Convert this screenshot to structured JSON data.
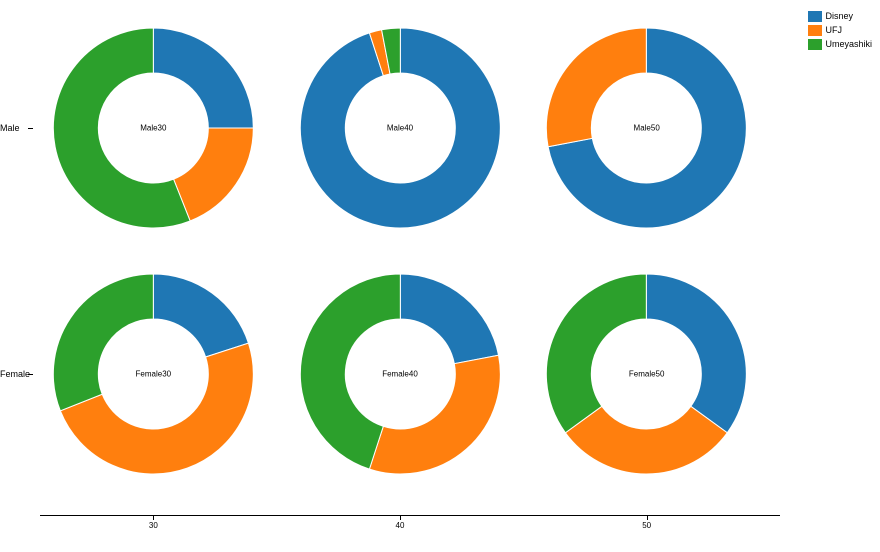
{
  "chart": {
    "type": "donut-grid",
    "background_color": "#ffffff",
    "categories": [
      "Disney",
      "UFJ",
      "Umeyashiki"
    ],
    "colors": {
      "Disney": "#1f77b4",
      "UFJ": "#ff7f0e",
      "Umeyashiki": "#2ca02c"
    },
    "rows": [
      "Male",
      "Female"
    ],
    "cols": [
      "30",
      "40",
      "50"
    ],
    "x_axis_label_fontsize": 8,
    "row_label_fontsize": 9,
    "center_label_fontsize": 8,
    "legend_fontsize": 9,
    "donut": {
      "outer_radius": 100,
      "inner_radius": 55,
      "stroke": "#ffffff",
      "stroke_width": 1
    },
    "cells": [
      {
        "row": "Male",
        "col": "30",
        "center_label": "Male30",
        "slices": [
          {
            "category": "Disney",
            "value": 25
          },
          {
            "category": "UFJ",
            "value": 19
          },
          {
            "category": "Umeyashiki",
            "value": 56
          }
        ]
      },
      {
        "row": "Male",
        "col": "40",
        "center_label": "Male40",
        "slices": [
          {
            "category": "Disney",
            "value": 95
          },
          {
            "category": "UFJ",
            "value": 2
          },
          {
            "category": "Umeyashiki",
            "value": 3
          }
        ]
      },
      {
        "row": "Male",
        "col": "50",
        "center_label": "Male50",
        "slices": [
          {
            "category": "Disney",
            "value": 72
          },
          {
            "category": "UFJ",
            "value": 28
          },
          {
            "category": "Umeyashiki",
            "value": 0
          }
        ]
      },
      {
        "row": "Female",
        "col": "30",
        "center_label": "Female30",
        "slices": [
          {
            "category": "Disney",
            "value": 20
          },
          {
            "category": "UFJ",
            "value": 49
          },
          {
            "category": "Umeyashiki",
            "value": 31
          }
        ]
      },
      {
        "row": "Female",
        "col": "40",
        "center_label": "Female40",
        "slices": [
          {
            "category": "Disney",
            "value": 22
          },
          {
            "category": "UFJ",
            "value": 33
          },
          {
            "category": "Umeyashiki",
            "value": 45
          }
        ]
      },
      {
        "row": "Female",
        "col": "50",
        "center_label": "Female50",
        "slices": [
          {
            "category": "Disney",
            "value": 35
          },
          {
            "category": "UFJ",
            "value": 30
          },
          {
            "category": "Umeyashiki",
            "value": 35
          }
        ]
      }
    ],
    "legend": {
      "items": [
        "Disney",
        "UFJ",
        "Umeyashiki"
      ]
    }
  }
}
